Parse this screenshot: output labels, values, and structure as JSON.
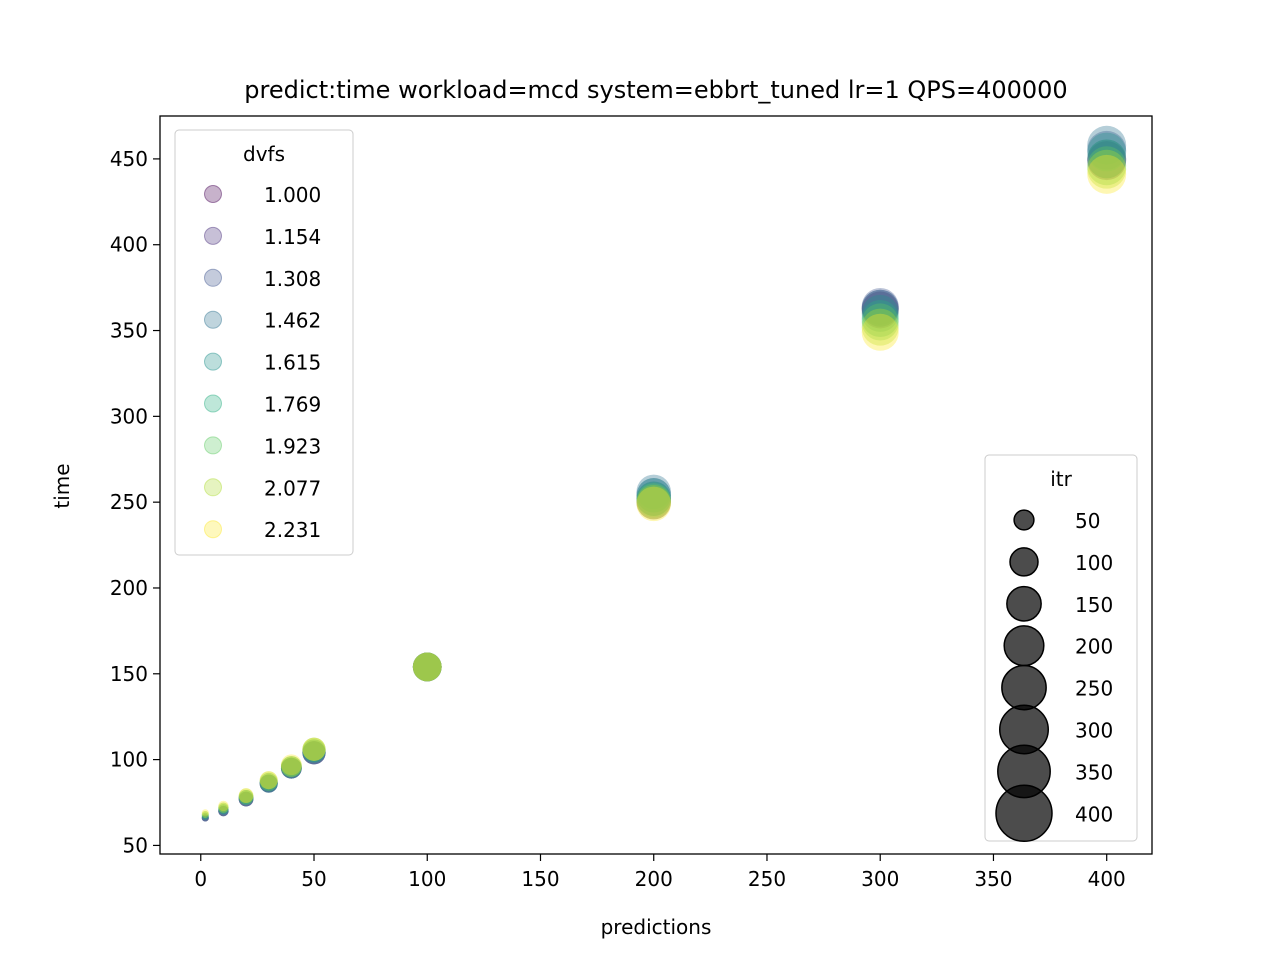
{
  "chart_data": {
    "type": "scatter",
    "title": "predict:time workload=mcd system=ebbrt_tuned lr=1 QPS=400000",
    "xlabel": "predictions",
    "ylabel": "time",
    "xlim": [
      -18,
      420
    ],
    "ylim": [
      45,
      475
    ],
    "xticks": [
      0,
      50,
      100,
      150,
      200,
      250,
      300,
      350,
      400
    ],
    "yticks": [
      50,
      100,
      150,
      200,
      250,
      300,
      350,
      400,
      450
    ],
    "grid": false,
    "color_legend": {
      "title": "dvfs",
      "placement": "upper-left",
      "entries": [
        {
          "label": "1.000",
          "color": "#440154"
        },
        {
          "label": "1.154",
          "color": "#472d7b"
        },
        {
          "label": "1.308",
          "color": "#3b528b"
        },
        {
          "label": "1.462",
          "color": "#2c728e"
        },
        {
          "label": "1.615",
          "color": "#21918c"
        },
        {
          "label": "1.769",
          "color": "#28ae80"
        },
        {
          "label": "1.923",
          "color": "#5ec962"
        },
        {
          "label": "2.077",
          "color": "#addc30"
        },
        {
          "label": "2.231",
          "color": "#fde725"
        }
      ]
    },
    "size_legend": {
      "title": "itr",
      "placement": "lower-right",
      "color": "#000000",
      "entries": [
        {
          "label": "50",
          "value": 50
        },
        {
          "label": "100",
          "value": 100
        },
        {
          "label": "150",
          "value": 150
        },
        {
          "label": "200",
          "value": 200
        },
        {
          "label": "250",
          "value": 250
        },
        {
          "label": "300",
          "value": 300
        },
        {
          "label": "350",
          "value": 350
        },
        {
          "label": "400",
          "value": 400
        }
      ]
    },
    "series": [
      {
        "dvfs": "1.000",
        "points": [
          [
            2,
            66,
            14
          ],
          [
            10,
            70,
            30
          ],
          [
            20,
            77,
            60
          ],
          [
            30,
            86,
            90
          ],
          [
            40,
            95,
            120
          ],
          [
            50,
            104,
            150
          ],
          [
            100,
            154,
            230
          ],
          [
            200,
            250,
            330
          ],
          [
            300,
            362,
            380
          ],
          [
            400,
            449,
            420
          ]
        ]
      },
      {
        "dvfs": "1.154",
        "points": [
          [
            2,
            66,
            14
          ],
          [
            10,
            70,
            30
          ],
          [
            20,
            77,
            60
          ],
          [
            30,
            86,
            90
          ],
          [
            40,
            95,
            120
          ],
          [
            50,
            104,
            150
          ],
          [
            100,
            154,
            230
          ],
          [
            200,
            252,
            330
          ],
          [
            300,
            363,
            380
          ],
          [
            400,
            450,
            420
          ]
        ]
      },
      {
        "dvfs": "1.308",
        "points": [
          [
            2,
            66,
            14
          ],
          [
            10,
            70,
            30
          ],
          [
            20,
            77,
            60
          ],
          [
            30,
            86,
            90
          ],
          [
            40,
            95,
            120
          ],
          [
            50,
            104,
            150
          ],
          [
            100,
            154,
            230
          ],
          [
            200,
            254,
            330
          ],
          [
            300,
            364,
            380
          ],
          [
            400,
            455,
            420
          ]
        ]
      },
      {
        "dvfs": "1.462",
        "points": [
          [
            2,
            66,
            14
          ],
          [
            10,
            70,
            30
          ],
          [
            20,
            77,
            60
          ],
          [
            30,
            86,
            90
          ],
          [
            40,
            95,
            120
          ],
          [
            50,
            104,
            150
          ],
          [
            100,
            154,
            230
          ],
          [
            200,
            256,
            330
          ],
          [
            300,
            363,
            380
          ],
          [
            400,
            458,
            420
          ]
        ]
      },
      {
        "dvfs": "1.615",
        "points": [
          [
            2,
            67,
            14
          ],
          [
            10,
            71,
            30
          ],
          [
            20,
            78,
            60
          ],
          [
            30,
            86,
            90
          ],
          [
            40,
            95,
            120
          ],
          [
            50,
            105,
            150
          ],
          [
            100,
            154,
            230
          ],
          [
            200,
            254,
            330
          ],
          [
            300,
            360,
            380
          ],
          [
            400,
            454,
            420
          ]
        ]
      },
      {
        "dvfs": "1.769",
        "points": [
          [
            2,
            67,
            14
          ],
          [
            10,
            71,
            30
          ],
          [
            20,
            78,
            60
          ],
          [
            30,
            87,
            90
          ],
          [
            40,
            96,
            120
          ],
          [
            50,
            105,
            150
          ],
          [
            100,
            154,
            230
          ],
          [
            200,
            252,
            330
          ],
          [
            300,
            357,
            380
          ],
          [
            400,
            450,
            420
          ]
        ]
      },
      {
        "dvfs": "1.923",
        "points": [
          [
            2,
            68,
            14
          ],
          [
            10,
            72,
            30
          ],
          [
            20,
            78,
            60
          ],
          [
            30,
            87,
            90
          ],
          [
            40,
            96,
            120
          ],
          [
            50,
            106,
            150
          ],
          [
            100,
            154,
            230
          ],
          [
            200,
            251,
            330
          ],
          [
            300,
            355,
            380
          ],
          [
            400,
            446,
            420
          ]
        ]
      },
      {
        "dvfs": "2.077",
        "points": [
          [
            2,
            68,
            14
          ],
          [
            10,
            72,
            30
          ],
          [
            20,
            79,
            60
          ],
          [
            30,
            88,
            90
          ],
          [
            40,
            96,
            120
          ],
          [
            50,
            106,
            150
          ],
          [
            100,
            154,
            230
          ],
          [
            200,
            250,
            330
          ],
          [
            300,
            352,
            380
          ],
          [
            400,
            444,
            420
          ]
        ]
      },
      {
        "dvfs": "2.231",
        "points": [
          [
            2,
            69,
            14
          ],
          [
            10,
            73,
            30
          ],
          [
            20,
            79,
            60
          ],
          [
            30,
            88,
            90
          ],
          [
            40,
            97,
            120
          ],
          [
            50,
            106,
            150
          ],
          [
            100,
            154,
            230
          ],
          [
            200,
            249,
            330
          ],
          [
            300,
            349,
            380
          ],
          [
            400,
            441,
            420
          ]
        ]
      }
    ]
  }
}
